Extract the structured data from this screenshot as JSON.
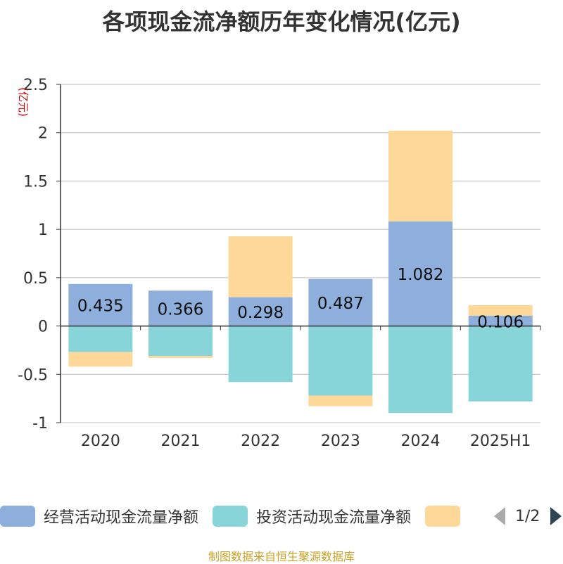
{
  "title": "各项现金流净额历年变化情况(亿元)",
  "source_note": "制图数据来自恒生聚源数据库",
  "pager": {
    "text": "1/2"
  },
  "colors": {
    "operating": "#8eaedb",
    "investing": "#88d5d9",
    "financing": "#fed898",
    "axis": "#333333",
    "grid": "#bbbbbb",
    "unit": "#cc0000"
  },
  "chart_data": {
    "type": "bar",
    "stacked": true,
    "title": "各项现金流净额历年变化情况(亿元)",
    "ylabel": "(亿元)",
    "ylim": [
      -1,
      2.5
    ],
    "yticks": [
      -1,
      -0.5,
      0,
      0.5,
      1,
      1.5,
      2,
      2.5
    ],
    "ytick_labels": [
      "-1",
      "-0.5",
      "0",
      "0.5",
      "1",
      "1.5",
      "2",
      "2.5"
    ],
    "grid": true,
    "legend_position": "bottom",
    "categories": [
      "2020",
      "2021",
      "2022",
      "2023",
      "2024",
      "2025H1"
    ],
    "series": [
      {
        "name": "经营活动现金流量净额",
        "values": [
          0.435,
          0.366,
          0.298,
          0.487,
          1.082,
          0.106
        ],
        "labels": [
          "0.435",
          "0.366",
          "0.298",
          "0.487",
          "1.082",
          "0.106"
        ]
      },
      {
        "name": "投资活动现金流量净额",
        "values": [
          -0.27,
          -0.31,
          -0.58,
          -0.72,
          -0.9,
          -0.78
        ]
      },
      {
        "name": "",
        "values": [
          -0.15,
          -0.02,
          0.63,
          -0.11,
          0.94,
          0.11
        ]
      }
    ]
  }
}
